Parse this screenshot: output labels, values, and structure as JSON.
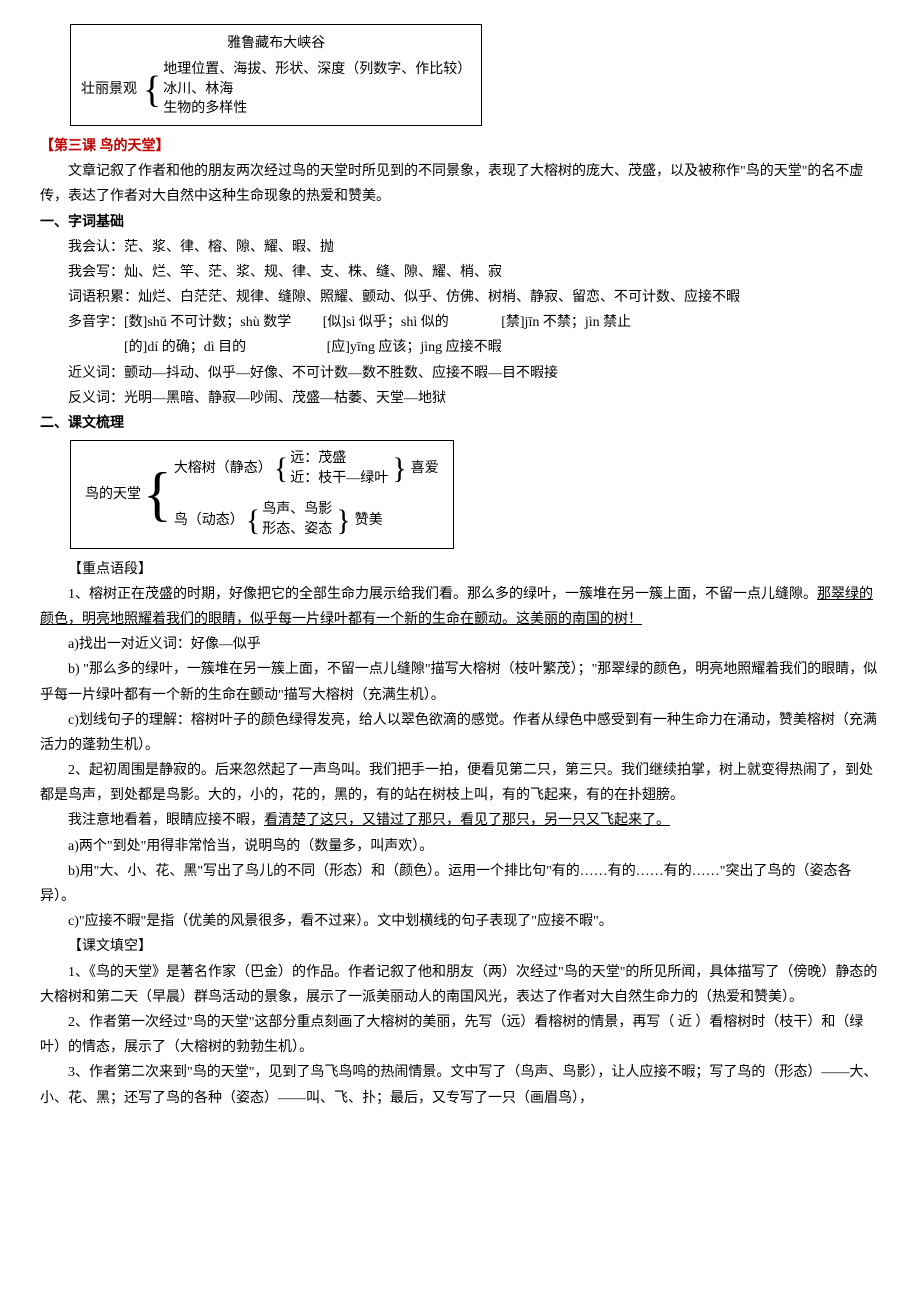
{
  "diagram1": {
    "title": "雅鲁藏布大峡谷",
    "root": "壮丽景观",
    "items": [
      "地理位置、海拔、形状、深度（列数字、作比较）",
      "冰川、林海",
      "生物的多样性"
    ]
  },
  "lesson3_heading": "【第三课 鸟的天堂】",
  "lesson3_intro": "文章记叙了作者和他的朋友两次经过鸟的天堂时所见到的不同景象，表现了大榕树的庞大、茂盛，以及被称作\"鸟的天堂\"的名不虚传，表达了作者对大自然中这种生命现象的热爱和赞美。",
  "sec1_heading": "一、字词基础",
  "sec1_lines": {
    "l1": "我会认：茫、浆、律、榕、隙、耀、暇、抛",
    "l2": "我会写：灿、烂、竿、茫、浆、规、律、支、株、缝、隙、耀、梢、寂",
    "l3": "词语积累：灿烂、白茫茫、规律、缝隙、照耀、颤动、似乎、仿佛、树梢、静寂、留恋、不可计数、应接不暇",
    "l4a": "多音字：[数]shǔ 不可计数；shù 数学",
    "l4b": "[似]sì 似乎；shì 似的",
    "l4c": "[禁]jīn 不禁；jìn 禁止",
    "l5a": "[的]dí 的确；dì 目的",
    "l5b": "[应]yīng 应该；jìng 应接不暇",
    "l6": "近义词：颤动—抖动、似乎—好像、不可计数—数不胜数、应接不暇—目不暇接",
    "l7": "反义词：光明—黑暗、静寂—吵闹、茂盛—枯萎、天堂—地狱"
  },
  "sec2_heading": "二、课文梳理",
  "diagram2": {
    "root": "鸟的天堂",
    "b1_label": "大榕树（静态）",
    "b1_items": [
      "远：茂盛",
      "近：枝干—绿叶"
    ],
    "b1_result": "喜爱",
    "b2_label": "鸟（动态）",
    "b2_items": [
      "鸟声、鸟影",
      "形态、姿态"
    ],
    "b2_result": "赞美"
  },
  "key_heading": "【重点语段】",
  "para1_prefix": "1、榕树正在茂盛的时期，好像把它的全部生命力展示给我们看。那么多的绿叶，一簇堆在另一簇上面，不留一点儿缝隙。",
  "para1_u": "那翠绿的颜色，明亮地照耀着我们的眼睛，似乎每一片绿叶都有一个新的生命在颤动。这美丽的南国的树！",
  "p1a": "a)找出一对近义词：好像—似乎",
  "p1b": "b) \"那么多的绿叶，一簇堆在另一簇上面，不留一点儿缝隙\"描写大榕树（枝叶繁茂）；\"那翠绿的颜色，明亮地照耀着我们的眼睛，似乎每一片绿叶都有一个新的生命在颤动\"描写大榕树（充满生机）。",
  "p1c": "c)划线句子的理解：榕树叶子的颜色绿得发亮，给人以翠色欲滴的感觉。作者从绿色中感受到有一种生命力在涌动，赞美榕树（充满活力的蓬勃生机）。",
  "para2": "2、起初周围是静寂的。后来忽然起了一声鸟叫。我们把手一拍，便看见第二只，第三只。我们继续拍掌，树上就变得热闹了，到处都是鸟声，到处都是鸟影。大的，小的，花的，黑的，有的站在树枝上叫，有的飞起来，有的在扑翅膀。",
  "para2b_prefix": "我注意地看着，眼睛应接不暇，",
  "para2b_u": "看清楚了这只，又错过了那只，看见了那只，另一只又飞起来了。",
  "p2a": "a)两个\"到处\"用得非常恰当，说明鸟的（数量多，叫声欢）。",
  "p2b": "b)用\"大、小、花、黑\"写出了鸟儿的不同（形态）和（颜色）。运用一个排比句\"有的……有的……有的……\"突出了鸟的（姿态各异）。",
  "p2c": "c)\"应接不暇\"是指（优美的风景很多，看不过来）。文中划横线的句子表现了\"应接不暇\"。",
  "fill_heading": "【课文填空】",
  "fill1": "1、《鸟的天堂》是著名作家（巴金）的作品。作者记叙了他和朋友（两）次经过\"鸟的天堂\"的所见所闻，具体描写了（傍晚）静态的大榕树和第二天（早晨）群鸟活动的景象，展示了一派美丽动人的南国风光，表达了作者对大自然生命力的（热爱和赞美）。",
  "fill2": "2、作者第一次经过\"鸟的天堂\"这部分重点刻画了大榕树的美丽，先写（远）看榕树的情景，再写（ 近 ）看榕树时（枝干）和（绿叶）的情态，展示了（大榕树的勃勃生机）。",
  "fill3": "3、作者第二次来到\"鸟的天堂\"，见到了鸟飞鸟鸣的热闹情景。文中写了（鸟声、鸟影），让人应接不暇；写了鸟的（形态）——大、小、花、黑；还写了鸟的各种（姿态）——叫、飞、扑；最后，又专写了一只（画眉鸟），"
}
